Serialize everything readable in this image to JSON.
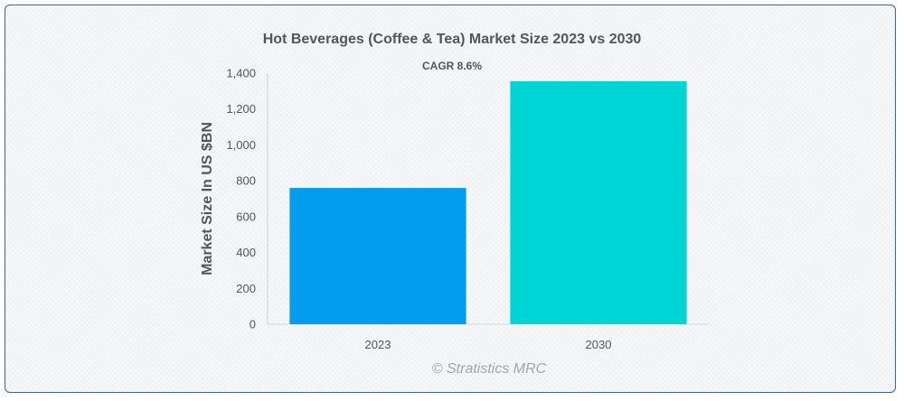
{
  "chart_data": {
    "type": "bar",
    "title": "Hot Beverages (Coffee & Tea) Market Size 2023 vs 2030",
    "annotation": "CAGR 8.6%",
    "xlabel": "",
    "ylabel": "Market Size In US $BN",
    "categories": [
      "2023",
      "2030"
    ],
    "values": [
      760,
      1355
    ],
    "colors": [
      "#039ded",
      "#00d4d4"
    ],
    "ylim": [
      0,
      1400
    ],
    "yticks": [
      0,
      200,
      400,
      600,
      800,
      1000,
      1200,
      1400
    ],
    "ytick_labels": [
      "0",
      "200",
      "400",
      "600",
      "800",
      "1,000",
      "1,200",
      "1,400"
    ],
    "grid": false,
    "legend": "none"
  },
  "credit": "© Stratistics MRC"
}
